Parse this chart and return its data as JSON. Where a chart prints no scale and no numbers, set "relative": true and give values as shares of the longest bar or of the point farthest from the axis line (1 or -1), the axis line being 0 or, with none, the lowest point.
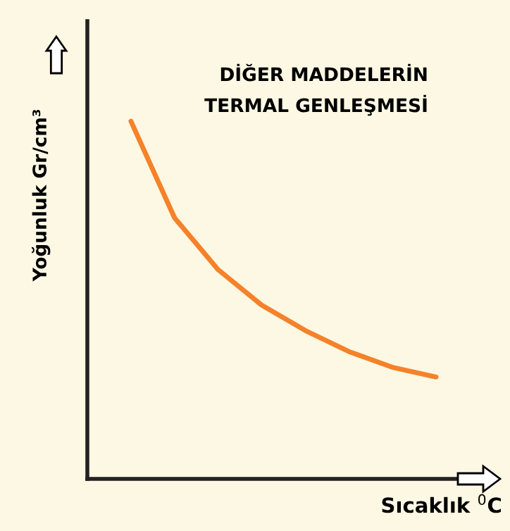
{
  "chart_data": {
    "type": "line",
    "relative": true,
    "title": "DİĞER MADDELERİN\nTERMAL GENLEŞMESİ",
    "xlabel": "Sıcaklık $^{0}$C",
    "ylabel": "Yoğunluk Gr/cm³",
    "categories": [
      null,
      null,
      null,
      null,
      null,
      null,
      null,
      null
    ],
    "series": [
      {
        "color": "#f5822a",
        "values": [
          1,
          0.73,
          0.585,
          0.486,
          0.415,
          0.356,
          0.312,
          0.285
        ]
      }
    ],
    "grid": false,
    "marker": "none",
    "line_style": "solid"
  }
}
